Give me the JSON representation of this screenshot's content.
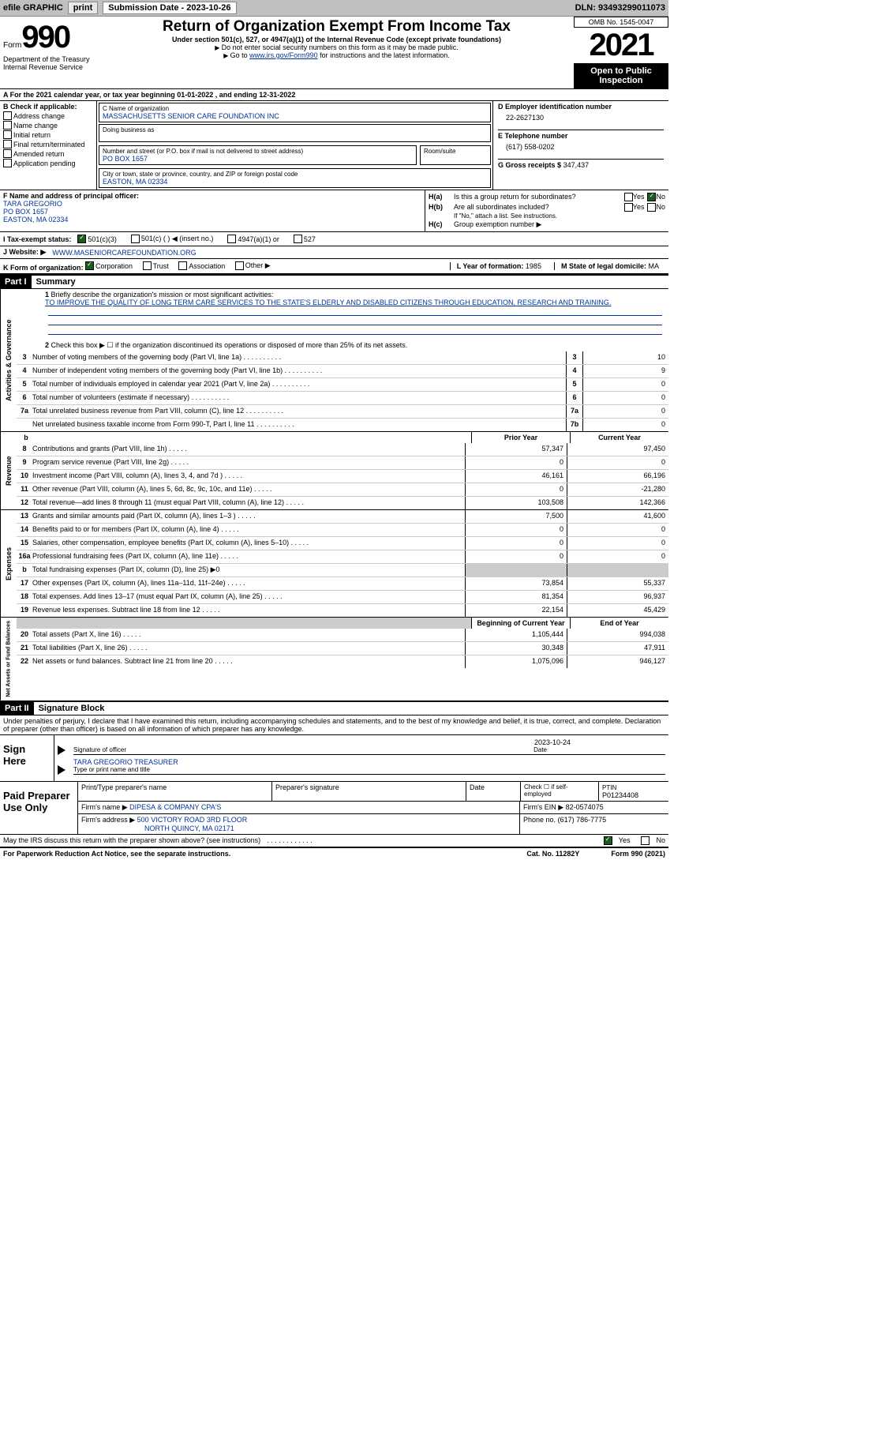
{
  "toolbar": {
    "efile": "efile GRAPHIC",
    "print": "print",
    "submission_label": "Submission Date - 2023-10-26",
    "dln": "DLN: 93493299011073"
  },
  "header": {
    "form_prefix": "Form",
    "form_number": "990",
    "dept": "Department of the Treasury\nInternal Revenue Service",
    "title": "Return of Organization Exempt From Income Tax",
    "subtitle": "Under section 501(c), 527, or 4947(a)(1) of the Internal Revenue Code (except private foundations)",
    "note1": "Do not enter social security numbers on this form as it may be made public.",
    "note2_pre": "Go to ",
    "note2_link": "www.irs.gov/Form990",
    "note2_post": " for instructions and the latest information.",
    "omb": "OMB No. 1545-0047",
    "year": "2021",
    "open_public": "Open to Public Inspection"
  },
  "line_a": "A  For the 2021 calendar year, or tax year beginning 01-01-2022    , and ending 12-31-2022",
  "box_b": {
    "label": "B Check if applicable:",
    "items": [
      "Address change",
      "Name change",
      "Initial return",
      "Final return/terminated",
      "Amended return",
      "Application pending"
    ]
  },
  "box_c": {
    "name_label": "C Name of organization",
    "name": "MASSACHUSETTS SENIOR CARE FOUNDATION INC",
    "dba_label": "Doing business as",
    "addr_label": "Number and street (or P.O. box if mail is not delivered to street address)",
    "room_label": "Room/suite",
    "addr": "PO BOX 1657",
    "city_label": "City or town, state or province, country, and ZIP or foreign postal code",
    "city": "EASTON, MA  02334"
  },
  "box_d": {
    "d_label": "D Employer identification number",
    "ein": "22-2627130",
    "e_label": "E Telephone number",
    "phone": "(617) 558-0202",
    "g_label": "G Gross receipts $",
    "gross": "347,437"
  },
  "box_f": {
    "label": "F Name and address of principal officer:",
    "name": "TARA GREGORIO",
    "addr1": "PO BOX 1657",
    "addr2": "EASTON, MA  02334"
  },
  "box_h": {
    "a_label": "H(a)",
    "a_text": "Is this a group return for subordinates?",
    "b_label": "H(b)",
    "b_text": "Are all subordinates included?",
    "note": "If \"No,\" attach a list. See instructions.",
    "c_label": "H(c)",
    "c_text": "Group exemption number ▶",
    "yes": "Yes",
    "no": "No"
  },
  "line_i": {
    "label": "I    Tax-exempt status:",
    "opts": [
      "501(c)(3)",
      "501(c) (  ) ◀ (insert no.)",
      "4947(a)(1) or",
      "527"
    ]
  },
  "line_j": {
    "label": "J   Website: ▶",
    "url": "WWW.MASENIORCAREFOUNDATION.ORG"
  },
  "line_k": {
    "label": "K Form of organization:",
    "opts": [
      "Corporation",
      "Trust",
      "Association",
      "Other ▶"
    ]
  },
  "line_l": {
    "label": "L Year of formation:",
    "val": "1985"
  },
  "line_m": {
    "label": "M State of legal domicile:",
    "val": "MA"
  },
  "part1": {
    "num": "Part I",
    "title": "Summary"
  },
  "mission": {
    "label": "Briefly describe the organization's mission or most significant activities:",
    "text": "TO IMPROVE THE QUALITY OF LONG TERM CARE SERVICES TO THE STATE'S ELDERLY AND DISABLED CITIZENS THROUGH EDUCATION, RESEARCH AND TRAINING."
  },
  "line2": "Check this box ▶ ☐  if the organization discontinued its operations or disposed of more than 25% of its net assets.",
  "governance_lines": [
    {
      "n": "3",
      "desc": "Number of voting members of the governing body (Part VI, line 1a)",
      "box": "3",
      "val": "10"
    },
    {
      "n": "4",
      "desc": "Number of independent voting members of the governing body (Part VI, line 1b)",
      "box": "4",
      "val": "9"
    },
    {
      "n": "5",
      "desc": "Total number of individuals employed in calendar year 2021 (Part V, line 2a)",
      "box": "5",
      "val": "0"
    },
    {
      "n": "6",
      "desc": "Total number of volunteers (estimate if necessary)",
      "box": "6",
      "val": "0"
    },
    {
      "n": "7a",
      "desc": "Total unrelated business revenue from Part VIII, column (C), line 12",
      "box": "7a",
      "val": "0"
    },
    {
      "n": "",
      "desc": "Net unrelated business taxable income from Form 990-T, Part I, line 11",
      "box": "7b",
      "val": "0"
    }
  ],
  "col_headers": {
    "b": "b",
    "prior": "Prior Year",
    "current": "Current Year"
  },
  "revenue_lines": [
    {
      "n": "8",
      "desc": "Contributions and grants (Part VIII, line 1h)",
      "prior": "57,347",
      "curr": "97,450"
    },
    {
      "n": "9",
      "desc": "Program service revenue (Part VIII, line 2g)",
      "prior": "0",
      "curr": "0"
    },
    {
      "n": "10",
      "desc": "Investment income (Part VIII, column (A), lines 3, 4, and 7d )",
      "prior": "46,161",
      "curr": "66,196"
    },
    {
      "n": "11",
      "desc": "Other revenue (Part VIII, column (A), lines 5, 6d, 8c, 9c, 10c, and 11e)",
      "prior": "0",
      "curr": "-21,280"
    },
    {
      "n": "12",
      "desc": "Total revenue—add lines 8 through 11 (must equal Part VIII, column (A), line 12)",
      "prior": "103,508",
      "curr": "142,366"
    }
  ],
  "expense_lines": [
    {
      "n": "13",
      "desc": "Grants and similar amounts paid (Part IX, column (A), lines 1–3 )",
      "prior": "7,500",
      "curr": "41,600"
    },
    {
      "n": "14",
      "desc": "Benefits paid to or for members (Part IX, column (A), line 4)",
      "prior": "0",
      "curr": "0"
    },
    {
      "n": "15",
      "desc": "Salaries, other compensation, employee benefits (Part IX, column (A), lines 5–10)",
      "prior": "0",
      "curr": "0"
    },
    {
      "n": "16a",
      "desc": "Professional fundraising fees (Part IX, column (A), line 11e)",
      "prior": "0",
      "curr": "0"
    },
    {
      "n": "b",
      "desc": "Total fundraising expenses (Part IX, column (D), line 25) ▶0",
      "prior": "",
      "curr": "",
      "shaded": true
    },
    {
      "n": "17",
      "desc": "Other expenses (Part IX, column (A), lines 11a–11d, 11f–24e)",
      "prior": "73,854",
      "curr": "55,337"
    },
    {
      "n": "18",
      "desc": "Total expenses. Add lines 13–17 (must equal Part IX, column (A), line 25)",
      "prior": "81,354",
      "curr": "96,937"
    },
    {
      "n": "19",
      "desc": "Revenue less expenses. Subtract line 18 from line 12",
      "prior": "22,154",
      "curr": "45,429"
    }
  ],
  "netassets_headers": {
    "begin": "Beginning of Current Year",
    "end": "End of Year"
  },
  "netassets_lines": [
    {
      "n": "20",
      "desc": "Total assets (Part X, line 16)",
      "prior": "1,105,444",
      "curr": "994,038"
    },
    {
      "n": "21",
      "desc": "Total liabilities (Part X, line 26)",
      "prior": "30,348",
      "curr": "47,911"
    },
    {
      "n": "22",
      "desc": "Net assets or fund balances. Subtract line 21 from line 20",
      "prior": "1,075,096",
      "curr": "946,127"
    }
  ],
  "side_labels": {
    "gov": "Activities & Governance",
    "rev": "Revenue",
    "exp": "Expenses",
    "net": "Net Assets or Fund Balances"
  },
  "part2": {
    "num": "Part II",
    "title": "Signature Block"
  },
  "penalties": "Under penalties of perjury, I declare that I have examined this return, including accompanying schedules and statements, and to the best of my knowledge and belief, it is true, correct, and complete. Declaration of preparer (other than officer) is based on all information of which preparer has any knowledge.",
  "sign": {
    "label": "Sign Here",
    "sig_label": "Signature of officer",
    "date": "2023-10-24",
    "date_label": "Date",
    "name": "TARA GREGORIO  TREASURER",
    "name_label": "Type or print name and title"
  },
  "prep": {
    "label": "Paid Preparer Use Only",
    "print_label": "Print/Type preparer's name",
    "sig_label": "Preparer's signature",
    "date_label": "Date",
    "check_label": "Check ☐ if self-employed",
    "ptin_label": "PTIN",
    "ptin": "P01234408",
    "firm_label": "Firm's name    ▶",
    "firm": "DiPesa & Company CPA's",
    "ein_label": "Firm's EIN ▶",
    "ein": "82-0574075",
    "addr_label": "Firm's address ▶",
    "addr1": "500 Victory Road 3rd Floor",
    "addr2": "North Quincy, MA  02171",
    "phone_label": "Phone no.",
    "phone": "(617) 786-7775"
  },
  "discuss": "May the IRS discuss this return with the preparer shown above? (see instructions)",
  "footer": {
    "paperwork": "For Paperwork Reduction Act Notice, see the separate instructions.",
    "cat": "Cat. No. 11282Y",
    "form": "Form 990 (2021)"
  }
}
